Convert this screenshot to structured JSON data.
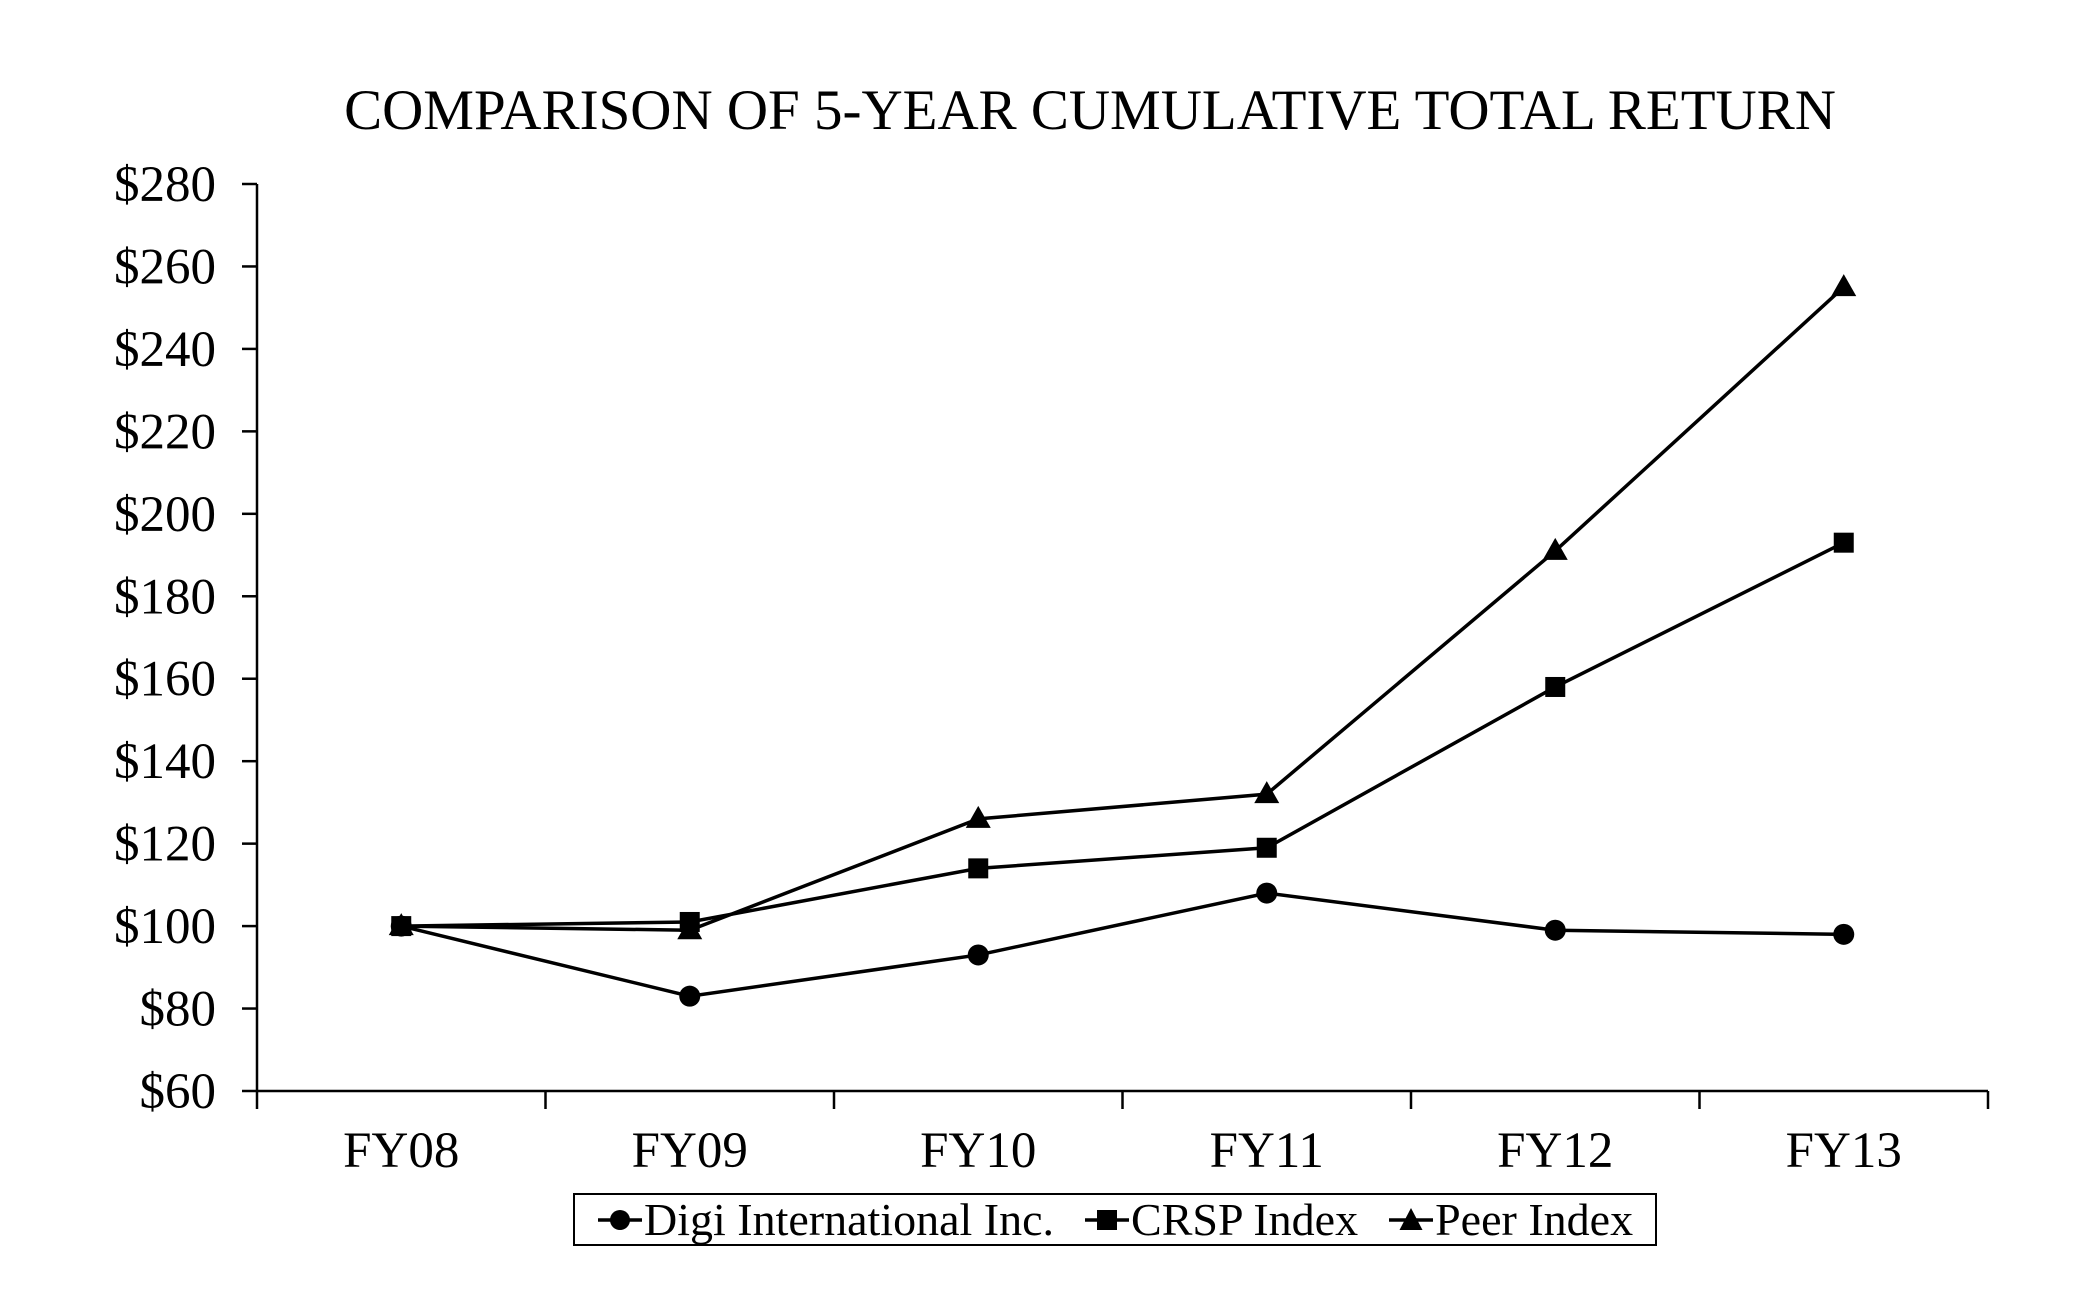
{
  "page": {
    "background": "#ffffff",
    "ink_color": "#000000"
  },
  "chart_data": {
    "type": "line",
    "title": "COMPARISON OF 5-YEAR CUMULATIVE TOTAL RETURN",
    "categories": [
      "FY08",
      "FY09",
      "FY10",
      "FY11",
      "FY12",
      "FY13"
    ],
    "series": [
      {
        "name": "Digi International Inc.",
        "marker": "circle",
        "values": [
          100,
          83,
          93,
          108,
          99,
          98
        ]
      },
      {
        "name": "CRSP Index",
        "marker": "square",
        "values": [
          100,
          101,
          114,
          119,
          158,
          193
        ]
      },
      {
        "name": "Peer Index",
        "marker": "triangle",
        "values": [
          100,
          99,
          126,
          132,
          191,
          255
        ]
      }
    ],
    "y_axis": {
      "min": 60,
      "max": 280,
      "step": 20,
      "tick_prefix": "$",
      "tick_labels": [
        "$60",
        "$80",
        "$100",
        "$120",
        "$140",
        "$160",
        "$180",
        "$200",
        "$220",
        "$240",
        "$260",
        "$280"
      ]
    },
    "x_axis": {
      "tick_labels": [
        "FY08",
        "FY09",
        "FY10",
        "FY11",
        "FY12",
        "FY13"
      ]
    },
    "legend": {
      "position": "bottom",
      "entries": [
        {
          "label": "Digi International Inc.",
          "marker": "circle"
        },
        {
          "label": "CRSP Index",
          "marker": "square"
        },
        {
          "label": "Peer Index",
          "marker": "triangle"
        }
      ]
    },
    "grid": false,
    "line_color": "#000000",
    "marker_color": "#000000",
    "background": "#ffffff"
  }
}
